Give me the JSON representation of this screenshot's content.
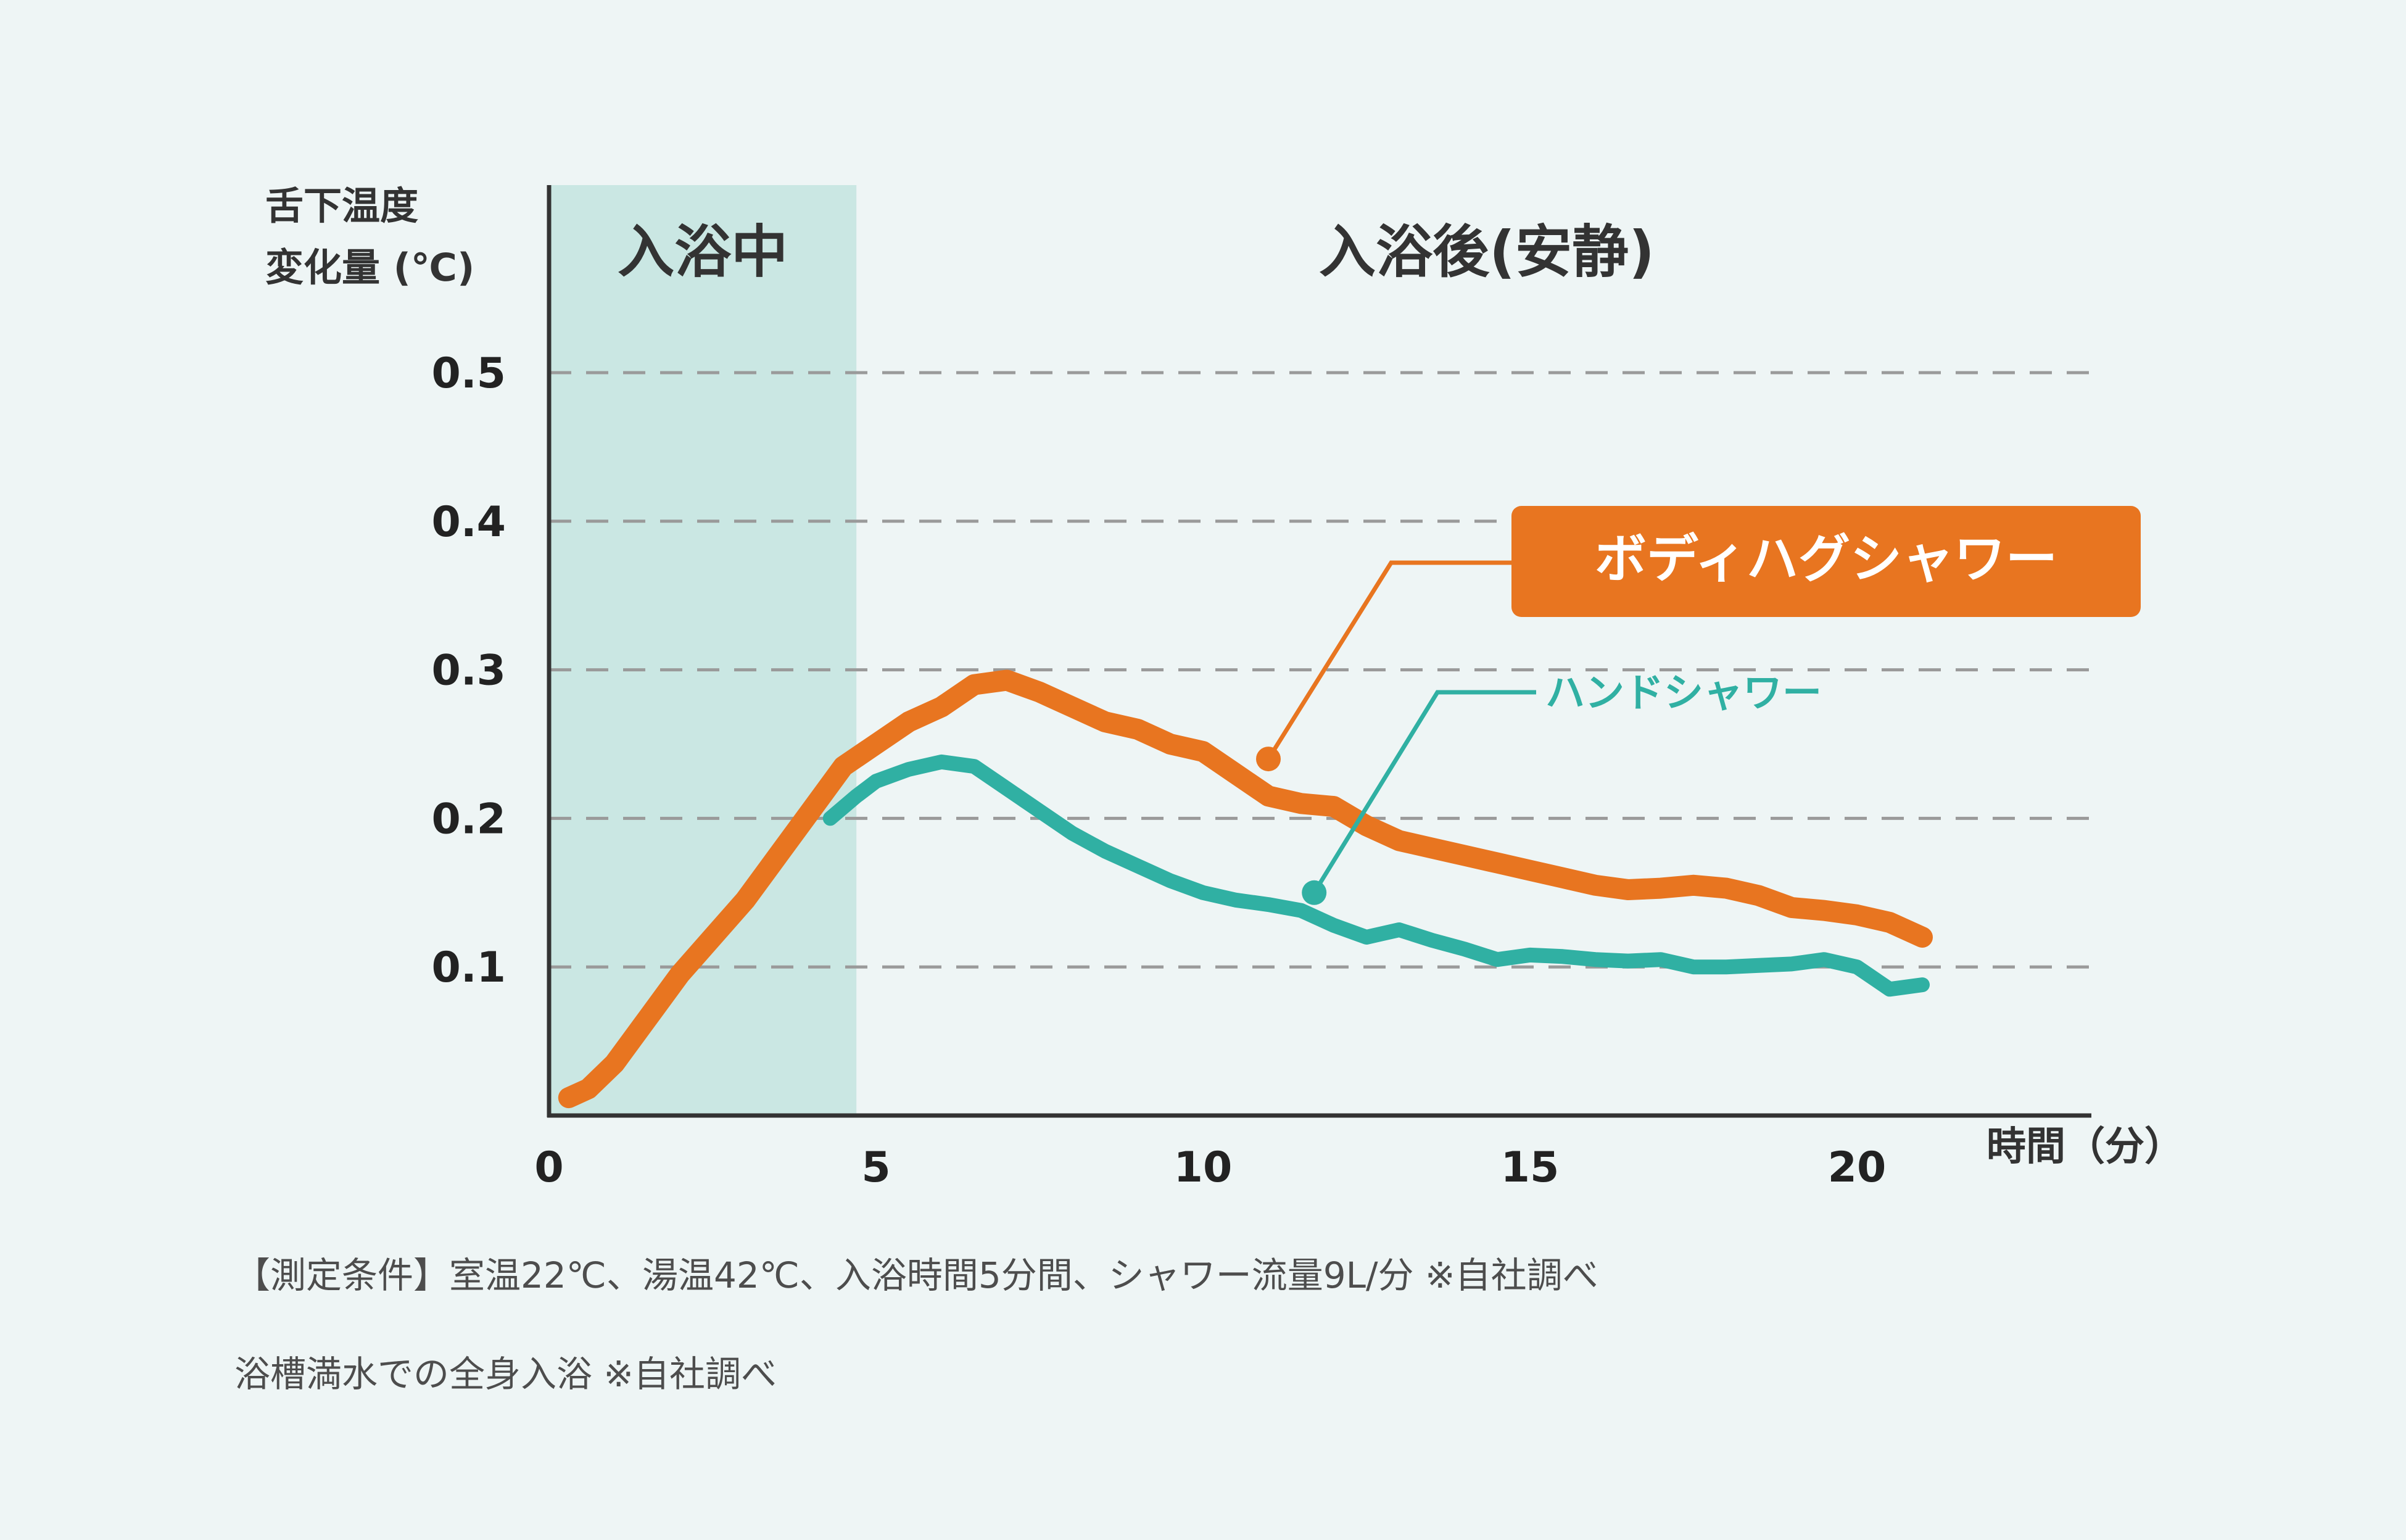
{
  "colors": {
    "background": "#eef5f5",
    "band": "#cae7e3",
    "orange": "#e87520",
    "teal": "#30b0a3",
    "axis": "#333333",
    "grid": "#9a9a9a",
    "text": "#333333"
  },
  "chart_data": {
    "type": "line",
    "ylabel": [
      "舌下温度",
      "変化量 (℃)"
    ],
    "xlabel": "時間（分）",
    "xlim": [
      0,
      23
    ],
    "ylim": [
      0,
      0.62
    ],
    "x_ticks": [
      "0",
      "5",
      "10",
      "15",
      "20"
    ],
    "x_tick_values": [
      0,
      5,
      10,
      15,
      20
    ],
    "y_ticks": [
      "0.1",
      "0.2",
      "0.3",
      "0.4",
      "0.5"
    ],
    "y_tick_values": [
      0.1,
      0.2,
      0.3,
      0.4,
      0.5
    ],
    "grid": "dashed horizontal",
    "regions": [
      {
        "label": "入浴中",
        "x_range": [
          0,
          4.7
        ],
        "shaded": true
      },
      {
        "label": "入浴後(安静)",
        "x_range": [
          4.7,
          23
        ],
        "shaded": false
      }
    ],
    "series": [
      {
        "name": "ボディハグシャワー",
        "color": "#e87520",
        "label_style": "box",
        "callout_point": [
          11.0,
          0.24
        ],
        "x": [
          0.3,
          0.6,
          1,
          1.5,
          2,
          2.5,
          3,
          3.5,
          4,
          4.5,
          5,
          5.5,
          6,
          6.5,
          7,
          7.5,
          8,
          8.5,
          9,
          9.5,
          10,
          10.5,
          11,
          11.5,
          12,
          12.5,
          13,
          13.5,
          14,
          14.5,
          15,
          15.5,
          16,
          16.5,
          17,
          17.5,
          18,
          18.5,
          19,
          19.5,
          20,
          20.5,
          21
        ],
        "values": [
          0.012,
          0.018,
          0.035,
          0.065,
          0.095,
          0.12,
          0.145,
          0.175,
          0.205,
          0.235,
          0.25,
          0.265,
          0.275,
          0.29,
          0.293,
          0.285,
          0.275,
          0.265,
          0.26,
          0.25,
          0.245,
          0.23,
          0.215,
          0.21,
          0.208,
          0.195,
          0.185,
          0.18,
          0.175,
          0.17,
          0.165,
          0.16,
          0.155,
          0.152,
          0.153,
          0.155,
          0.153,
          0.148,
          0.14,
          0.138,
          0.135,
          0.13,
          0.12
        ]
      },
      {
        "name": "ハンドシャワー",
        "color": "#30b0a3",
        "label_style": "text",
        "callout_point": [
          11.7,
          0.15
        ],
        "x": [
          4.3,
          4.7,
          5,
          5.5,
          6,
          6.5,
          7,
          7.5,
          8,
          8.5,
          9,
          9.5,
          10,
          10.5,
          11,
          11.5,
          12,
          12.5,
          13,
          13.5,
          14,
          14.5,
          15,
          15.5,
          16,
          16.5,
          17,
          17.5,
          18,
          18.5,
          19,
          19.5,
          20,
          20.5,
          21
        ],
        "values": [
          0.2,
          0.215,
          0.225,
          0.233,
          0.238,
          0.235,
          0.22,
          0.205,
          0.19,
          0.178,
          0.168,
          0.158,
          0.15,
          0.145,
          0.142,
          0.138,
          0.128,
          0.12,
          0.125,
          0.118,
          0.112,
          0.105,
          0.108,
          0.107,
          0.105,
          0.104,
          0.105,
          0.1,
          0.1,
          0.101,
          0.102,
          0.105,
          0.1,
          0.085,
          0.088
        ]
      }
    ],
    "notes": [
      "【測定条件】室温22℃、湯温42℃、入浴時間5分間、シャワー流量9L/分 ※自社調べ",
      "浴槽満水での全身入浴 ※自社調べ"
    ]
  }
}
